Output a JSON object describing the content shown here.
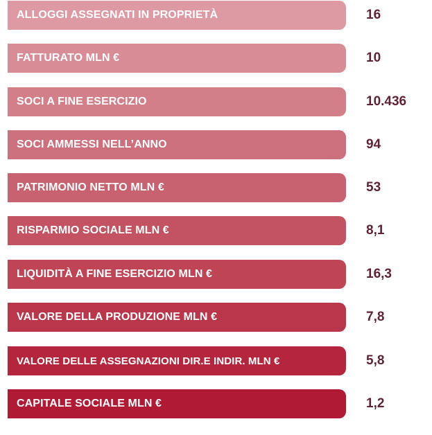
{
  "stats": [
    {
      "label": "ALLOGGI ASSEGNATI IN PROPRIETÀ",
      "value": "16",
      "color": "#de9aa3"
    },
    {
      "label": "FATTURATO MLN €",
      "value": "10",
      "color": "#d88c96"
    },
    {
      "label": "SOCI A FINE ESERCIZIO",
      "value": "10.436",
      "color": "#d37f8a"
    },
    {
      "label": "SOCI AMMESSI NELL’ANNO",
      "value": "94",
      "color": "#cd707d"
    },
    {
      "label": "PATRIMONIO NETTO MLN €",
      "value": "53",
      "color": "#c86270"
    },
    {
      "label": "RISPARMIO SOCIALE MLN €",
      "value": "8,1",
      "color": "#c35362"
    },
    {
      "label": "LIQUIDITÀ A FINE ESERCIZIO MLN €",
      "value": "16,3",
      "color": "#bf4556"
    },
    {
      "label": "VALORE DELLA PRODUZIONE MLN €",
      "value": "7,8",
      "color": "#ba364a"
    },
    {
      "label": "VALORE DELLE ASSEGNAZIONI DIR.E INDIR. MLN €",
      "value": "5,8",
      "color": "#b5263e"
    },
    {
      "label": "CAPITALE SOCIALE MLN €",
      "value": "1,2",
      "color": "#b11a35"
    }
  ]
}
